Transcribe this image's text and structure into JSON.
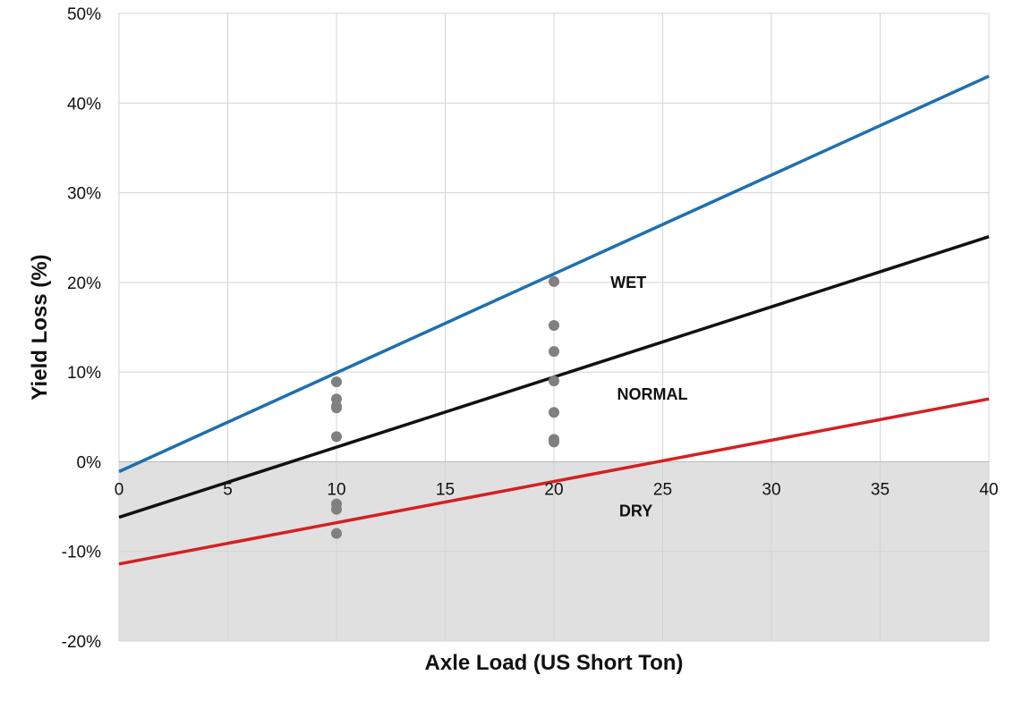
{
  "chart_data": {
    "type": "line",
    "title": "",
    "xlabel": "Axle Load (US Short Ton)",
    "ylabel": "Yield Loss (%)",
    "xlim": [
      0,
      40
    ],
    "ylim": [
      -20,
      50
    ],
    "xticks": [
      0,
      5,
      10,
      15,
      20,
      25,
      30,
      35,
      40
    ],
    "xtick_labels": [
      "0",
      "5",
      "10",
      "15",
      "20",
      "25",
      "30",
      "35",
      "40"
    ],
    "yticks": [
      -20,
      -10,
      0,
      10,
      20,
      30,
      40,
      50
    ],
    "ytick_labels": [
      "-20%",
      "-10%",
      "0%",
      "10%",
      "20%",
      "30%",
      "40%",
      "50%"
    ],
    "grid": true,
    "negative_region_shaded": true,
    "shade_color": "#e0e0e0",
    "series": [
      {
        "name": "WET",
        "color": "#1f6fb0",
        "x": [
          0,
          40
        ],
        "y": [
          -1.1,
          43.0
        ]
      },
      {
        "name": "NORMAL",
        "color": "#111111",
        "x": [
          0,
          40
        ],
        "y": [
          -6.2,
          25.1
        ]
      },
      {
        "name": "DRY",
        "color": "#d42020",
        "x": [
          0,
          40
        ],
        "y": [
          -11.4,
          7.0
        ]
      }
    ],
    "series_labels": [
      {
        "text": "WET",
        "x": 22.6,
        "y": 20.0
      },
      {
        "text": "NORMAL",
        "x": 22.9,
        "y": 7.5
      },
      {
        "text": "DRY",
        "x": 23.0,
        "y": -5.5
      }
    ],
    "points": {
      "color": "#808080",
      "x": [
        10,
        10,
        10,
        10,
        10,
        10,
        10,
        10,
        20,
        20,
        20,
        20,
        20,
        20,
        20
      ],
      "y": [
        8.9,
        7.0,
        6.2,
        6.0,
        2.8,
        -4.7,
        -5.3,
        -8.0,
        20.1,
        15.2,
        12.3,
        9.0,
        5.5,
        2.5,
        2.2
      ]
    }
  }
}
